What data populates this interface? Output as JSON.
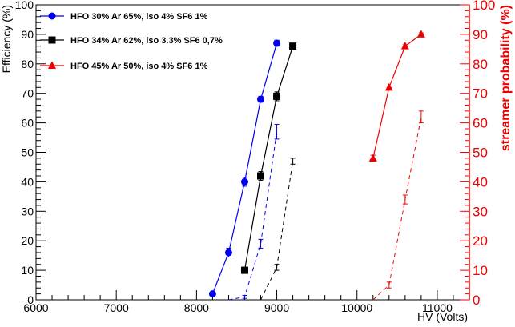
{
  "chart_data": {
    "type": "line",
    "title": "",
    "xlabel": "HV (Volts)",
    "ylabel": "Efficiency (%)",
    "y2label": "streamer probability (%)",
    "xlim": [
      6000,
      11400
    ],
    "ylim": [
      0,
      100
    ],
    "y2lim": [
      0,
      100
    ],
    "x_ticks": [
      6000,
      7000,
      8000,
      9000,
      10000,
      11000
    ],
    "y_ticks": [
      0,
      10,
      20,
      30,
      40,
      50,
      60,
      70,
      80,
      90,
      100
    ],
    "y2_ticks": [
      0,
      10,
      20,
      30,
      40,
      50,
      60,
      70,
      80,
      90,
      100
    ],
    "grid": false,
    "legend_position": "top-left",
    "colors": {
      "blue": "#0000ee",
      "black": "#000000",
      "red": "#ee0000"
    },
    "series": [
      {
        "name": "HFO 30% Ar 65%, iso 4%  SF6 1%",
        "color": "blue",
        "marker": "circle",
        "efficiency": {
          "x": [
            8200,
            8400,
            8600,
            8800,
            9000
          ],
          "y": [
            2,
            16,
            40,
            68,
            87
          ],
          "err": [
            0,
            1.5,
            1.5,
            1,
            1
          ]
        },
        "streamer": {
          "x": [
            8400,
            8600,
            8800,
            9000
          ],
          "y": [
            0,
            1,
            19,
            57
          ],
          "err": [
            0,
            0.5,
            1.5,
            2.5
          ]
        }
      },
      {
        "name": "HFO 34% Ar 62%, iso 3.3%  SF6 0,7%",
        "color": "black",
        "marker": "square",
        "efficiency": {
          "x": [
            8600,
            8800,
            9000,
            9200
          ],
          "y": [
            10,
            42,
            69,
            86
          ],
          "err": [
            0,
            1.5,
            1.5,
            0.5
          ]
        },
        "streamer": {
          "x": [
            8800,
            9000,
            9200
          ],
          "y": [
            0,
            11,
            47
          ],
          "err": [
            0,
            1,
            1
          ]
        }
      },
      {
        "name": "HFO 45% Ar 50%, iso 4%  SF6 1%",
        "color": "red",
        "marker": "triangle",
        "efficiency": {
          "x": [
            10200,
            10400,
            10600,
            10800
          ],
          "y": [
            48,
            72,
            86,
            90
          ],
          "err": [
            1,
            0.5,
            0.5,
            0.5
          ]
        },
        "streamer": {
          "x": [
            10200,
            10400,
            10600,
            10800
          ],
          "y": [
            0,
            5,
            34,
            62
          ],
          "err": [
            0,
            1,
            1.5,
            2
          ]
        }
      }
    ]
  }
}
